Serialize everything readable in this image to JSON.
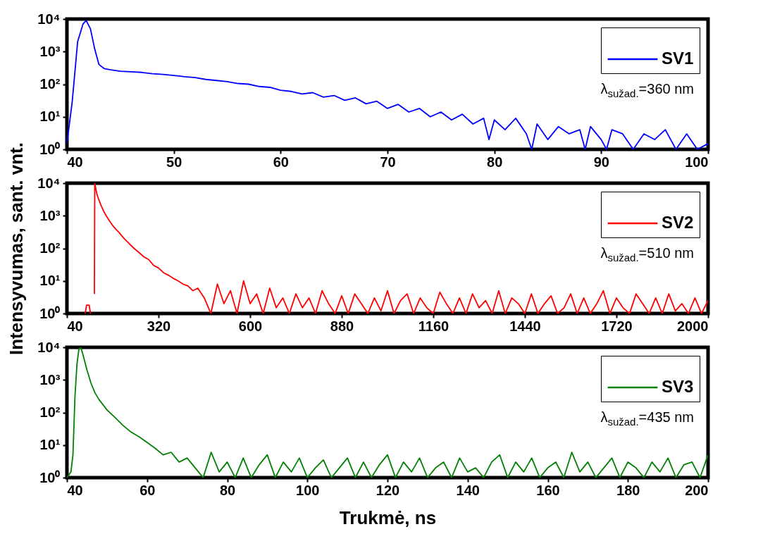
{
  "chart_data": [
    {
      "type": "line",
      "xlim": [
        40,
        100
      ],
      "xticks": [
        40,
        50,
        60,
        70,
        80,
        90,
        100
      ],
      "ylim": [
        1,
        10000
      ],
      "log": true,
      "legend": "top right",
      "yticks": [
        {
          "value": 1,
          "label": "10⁰"
        },
        {
          "value": 10,
          "label": "10¹"
        },
        {
          "value": 100,
          "label": "10²"
        },
        {
          "value": 1000,
          "label": "10³"
        },
        {
          "value": 10000,
          "label": "10⁴"
        }
      ],
      "annotations": [
        "λ$_{sužad.}$=360 nm"
      ],
      "series": [
        {
          "name": "SV1",
          "color": "#0000ff",
          "x": [
            40,
            40.5,
            41,
            41.5,
            41.8,
            42.2,
            42.6,
            43,
            43.5,
            44,
            45,
            46,
            47,
            48,
            49,
            50,
            51,
            52,
            53,
            54,
            55,
            56,
            57,
            58,
            59,
            60,
            61,
            62,
            63,
            64,
            65,
            66,
            67,
            68,
            69,
            70,
            71,
            72,
            73,
            74,
            75,
            76,
            77,
            78,
            79,
            79.5,
            80,
            81,
            82,
            83,
            83.5,
            84,
            85,
            86,
            87,
            88,
            88.5,
            89,
            90,
            90.5,
            91,
            92,
            93,
            94,
            95,
            96,
            97,
            98,
            99,
            100
          ],
          "values": [
            1.5,
            30,
            2000,
            7000,
            9000,
            5000,
            1200,
            400,
            300,
            280,
            250,
            240,
            230,
            210,
            200,
            185,
            170,
            160,
            140,
            130,
            120,
            105,
            100,
            85,
            80,
            65,
            60,
            50,
            55,
            40,
            45,
            32,
            38,
            25,
            30,
            18,
            24,
            14,
            18,
            10,
            14,
            8,
            12,
            6,
            9,
            2,
            8,
            4,
            9,
            3,
            1,
            6,
            2,
            5,
            3,
            4,
            1,
            5,
            2,
            1,
            4,
            3,
            1,
            3,
            2,
            4,
            1,
            3,
            1,
            1.5
          ]
        }
      ]
    },
    {
      "type": "line",
      "xlim": [
        40,
        2000
      ],
      "xticks": [
        40,
        320,
        600,
        880,
        1160,
        1440,
        1720,
        2000
      ],
      "ylim": [
        1,
        10000
      ],
      "log": true,
      "legend": "top right",
      "ylabel": "Intensyvumas, sant. vnt.",
      "yticks": [
        {
          "value": 1,
          "label": "10⁰"
        },
        {
          "value": 10,
          "label": "10¹"
        },
        {
          "value": 100,
          "label": "10²"
        },
        {
          "value": 1000,
          "label": "10³"
        },
        {
          "value": 10000,
          "label": "10⁴"
        }
      ],
      "annotations": [
        "λ$_{sužad.}$=510 nm"
      ],
      "series": [
        {
          "name": "SV2",
          "color": "#ff0000",
          "x": [
            96,
            100,
            108,
            112,
            118,
            124,
            125,
            128,
            132,
            138,
            145,
            152,
            160,
            170,
            180,
            190,
            200,
            215,
            230,
            245,
            260,
            275,
            290,
            305,
            320,
            335,
            350,
            365,
            380,
            395,
            410,
            425,
            440,
            460,
            480,
            500,
            520,
            540,
            560,
            580,
            600,
            620,
            640,
            660,
            680,
            700,
            720,
            740,
            760,
            780,
            800,
            820,
            840,
            860,
            880,
            900,
            920,
            940,
            960,
            980,
            1000,
            1020,
            1040,
            1060,
            1080,
            1100,
            1120,
            1140,
            1160,
            1180,
            1200,
            1220,
            1240,
            1260,
            1280,
            1300,
            1320,
            1340,
            1360,
            1380,
            1400,
            1420,
            1440,
            1460,
            1480,
            1500,
            1520,
            1540,
            1560,
            1580,
            1600,
            1620,
            1640,
            1660,
            1680,
            1700,
            1720,
            1740,
            1760,
            1780,
            1800,
            1820,
            1840,
            1860,
            1880,
            1900,
            1920,
            1940,
            1960,
            1980,
            2000
          ],
          "values": [
            1,
            1.8,
            1.8,
            1,
            null,
            4,
            10000,
            7000,
            4500,
            3000,
            2000,
            1400,
            1000,
            700,
            500,
            380,
            300,
            200,
            140,
            100,
            75,
            55,
            45,
            30,
            25,
            18,
            15,
            12,
            10,
            8,
            7,
            5,
            6,
            3,
            1,
            8,
            2,
            5,
            1,
            10,
            2,
            4,
            1,
            6,
            1.5,
            3,
            1,
            4,
            1.5,
            3,
            1,
            5,
            2,
            1,
            3.5,
            1,
            4,
            2,
            1,
            3,
            1.2,
            5,
            1,
            2.5,
            4,
            1,
            3,
            1.5,
            1,
            4.5,
            2,
            1,
            3,
            1,
            4,
            1.5,
            2.5,
            1,
            5,
            1,
            3,
            2,
            1,
            4,
            1,
            2,
            3.5,
            1,
            1.5,
            4,
            1,
            3,
            1,
            2,
            5,
            1,
            3,
            1.5,
            1,
            4,
            2,
            1,
            3,
            1,
            4,
            1.2,
            2,
            1,
            3,
            1,
            2.5
          ]
        }
      ]
    },
    {
      "type": "line",
      "xlim": [
        40,
        200
      ],
      "xticks": [
        40,
        60,
        80,
        100,
        120,
        140,
        160,
        180,
        200
      ],
      "ylim": [
        1,
        10000
      ],
      "log": true,
      "legend": "top right",
      "xlabel": "Trukmė, ns",
      "yticks": [
        {
          "value": 1,
          "label": "10⁰"
        },
        {
          "value": 10,
          "label": "10¹"
        },
        {
          "value": 100,
          "label": "10²"
        },
        {
          "value": 1000,
          "label": "10³"
        },
        {
          "value": 10000,
          "label": "10⁴"
        }
      ],
      "annotations": [
        "λ$_{sužad.}$=435 nm"
      ],
      "series": [
        {
          "name": "SV3",
          "color": "#008000",
          "x": [
            40,
            41,
            41.5,
            42,
            42.5,
            43,
            43.5,
            44,
            45,
            46,
            47,
            48,
            50,
            52,
            54,
            56,
            58,
            60,
            62,
            64,
            66,
            68,
            70,
            72,
            74,
            76,
            78,
            80,
            82,
            84,
            86,
            88,
            90,
            92,
            94,
            96,
            98,
            100,
            102,
            104,
            106,
            108,
            110,
            112,
            114,
            116,
            118,
            120,
            122,
            124,
            126,
            128,
            130,
            132,
            134,
            136,
            138,
            140,
            142,
            144,
            146,
            148,
            150,
            152,
            154,
            156,
            158,
            160,
            162,
            164,
            166,
            168,
            170,
            172,
            174,
            176,
            178,
            180,
            182,
            184,
            186,
            188,
            190,
            192,
            194,
            196,
            198,
            200
          ],
          "values": [
            1,
            1.5,
            5,
            300,
            3000,
            9000,
            9500,
            6000,
            2000,
            800,
            400,
            250,
            120,
            70,
            40,
            25,
            18,
            12,
            8,
            5,
            6,
            3,
            4,
            2,
            1,
            6,
            1.5,
            3,
            1,
            4,
            1,
            2.5,
            5,
            1,
            3,
            1.5,
            4,
            1,
            2,
            3.5,
            1,
            2,
            4,
            1,
            3,
            1,
            2.5,
            5,
            1,
            3,
            1.5,
            4,
            1,
            2,
            3,
            1,
            4,
            1.5,
            2,
            1,
            3,
            5,
            1,
            3,
            1.5,
            4,
            1,
            2,
            3,
            1,
            6,
            1.5,
            3,
            1,
            2,
            4,
            1,
            3,
            2,
            1,
            3,
            1.5,
            4,
            1,
            2.5,
            3,
            1,
            5
          ]
        }
      ]
    }
  ]
}
